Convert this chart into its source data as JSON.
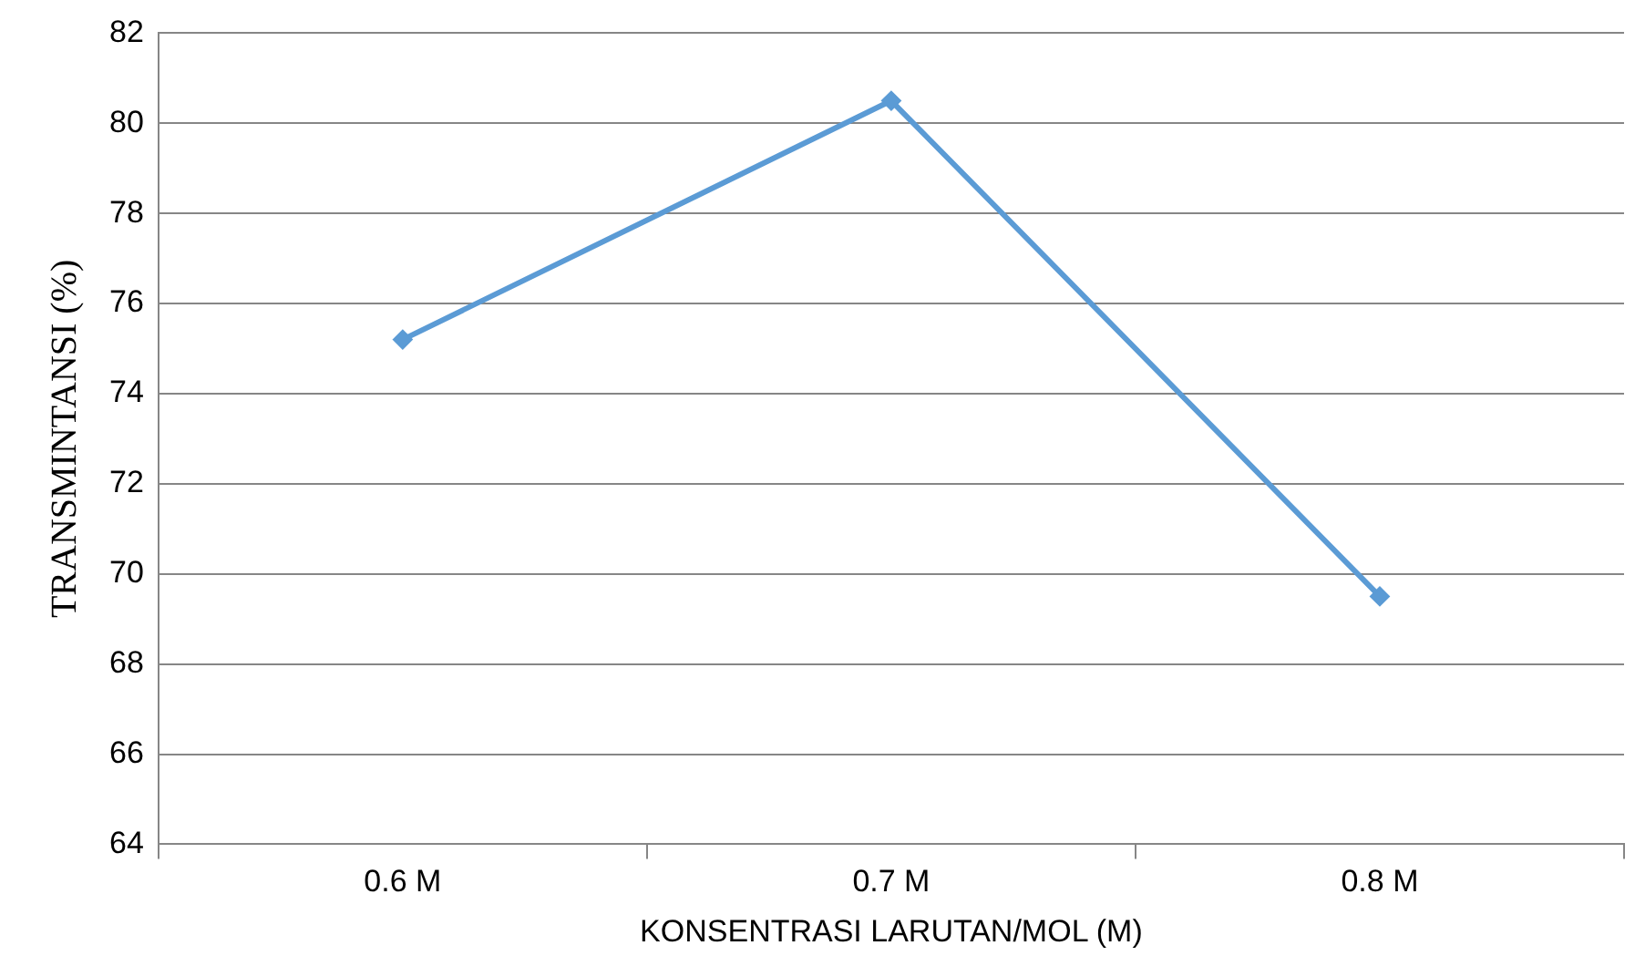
{
  "chart_data": {
    "type": "line",
    "xlabel": "KONSENTRASI LARUTAN/MOL (M)",
    "ylabel": "TRANSMINTANSI (%)",
    "categories": [
      "0.6 M",
      "0.7 M",
      "0.8 M"
    ],
    "series": [
      {
        "color": "#5b9bd5",
        "values": [
          75.2,
          80.5,
          69.5
        ]
      }
    ],
    "ylim": [
      64,
      82
    ],
    "yticks": [
      64,
      66,
      68,
      70,
      72,
      74,
      76,
      78,
      80,
      82
    ],
    "grid": "y",
    "marker": "diamond",
    "line_style": "solid"
  }
}
